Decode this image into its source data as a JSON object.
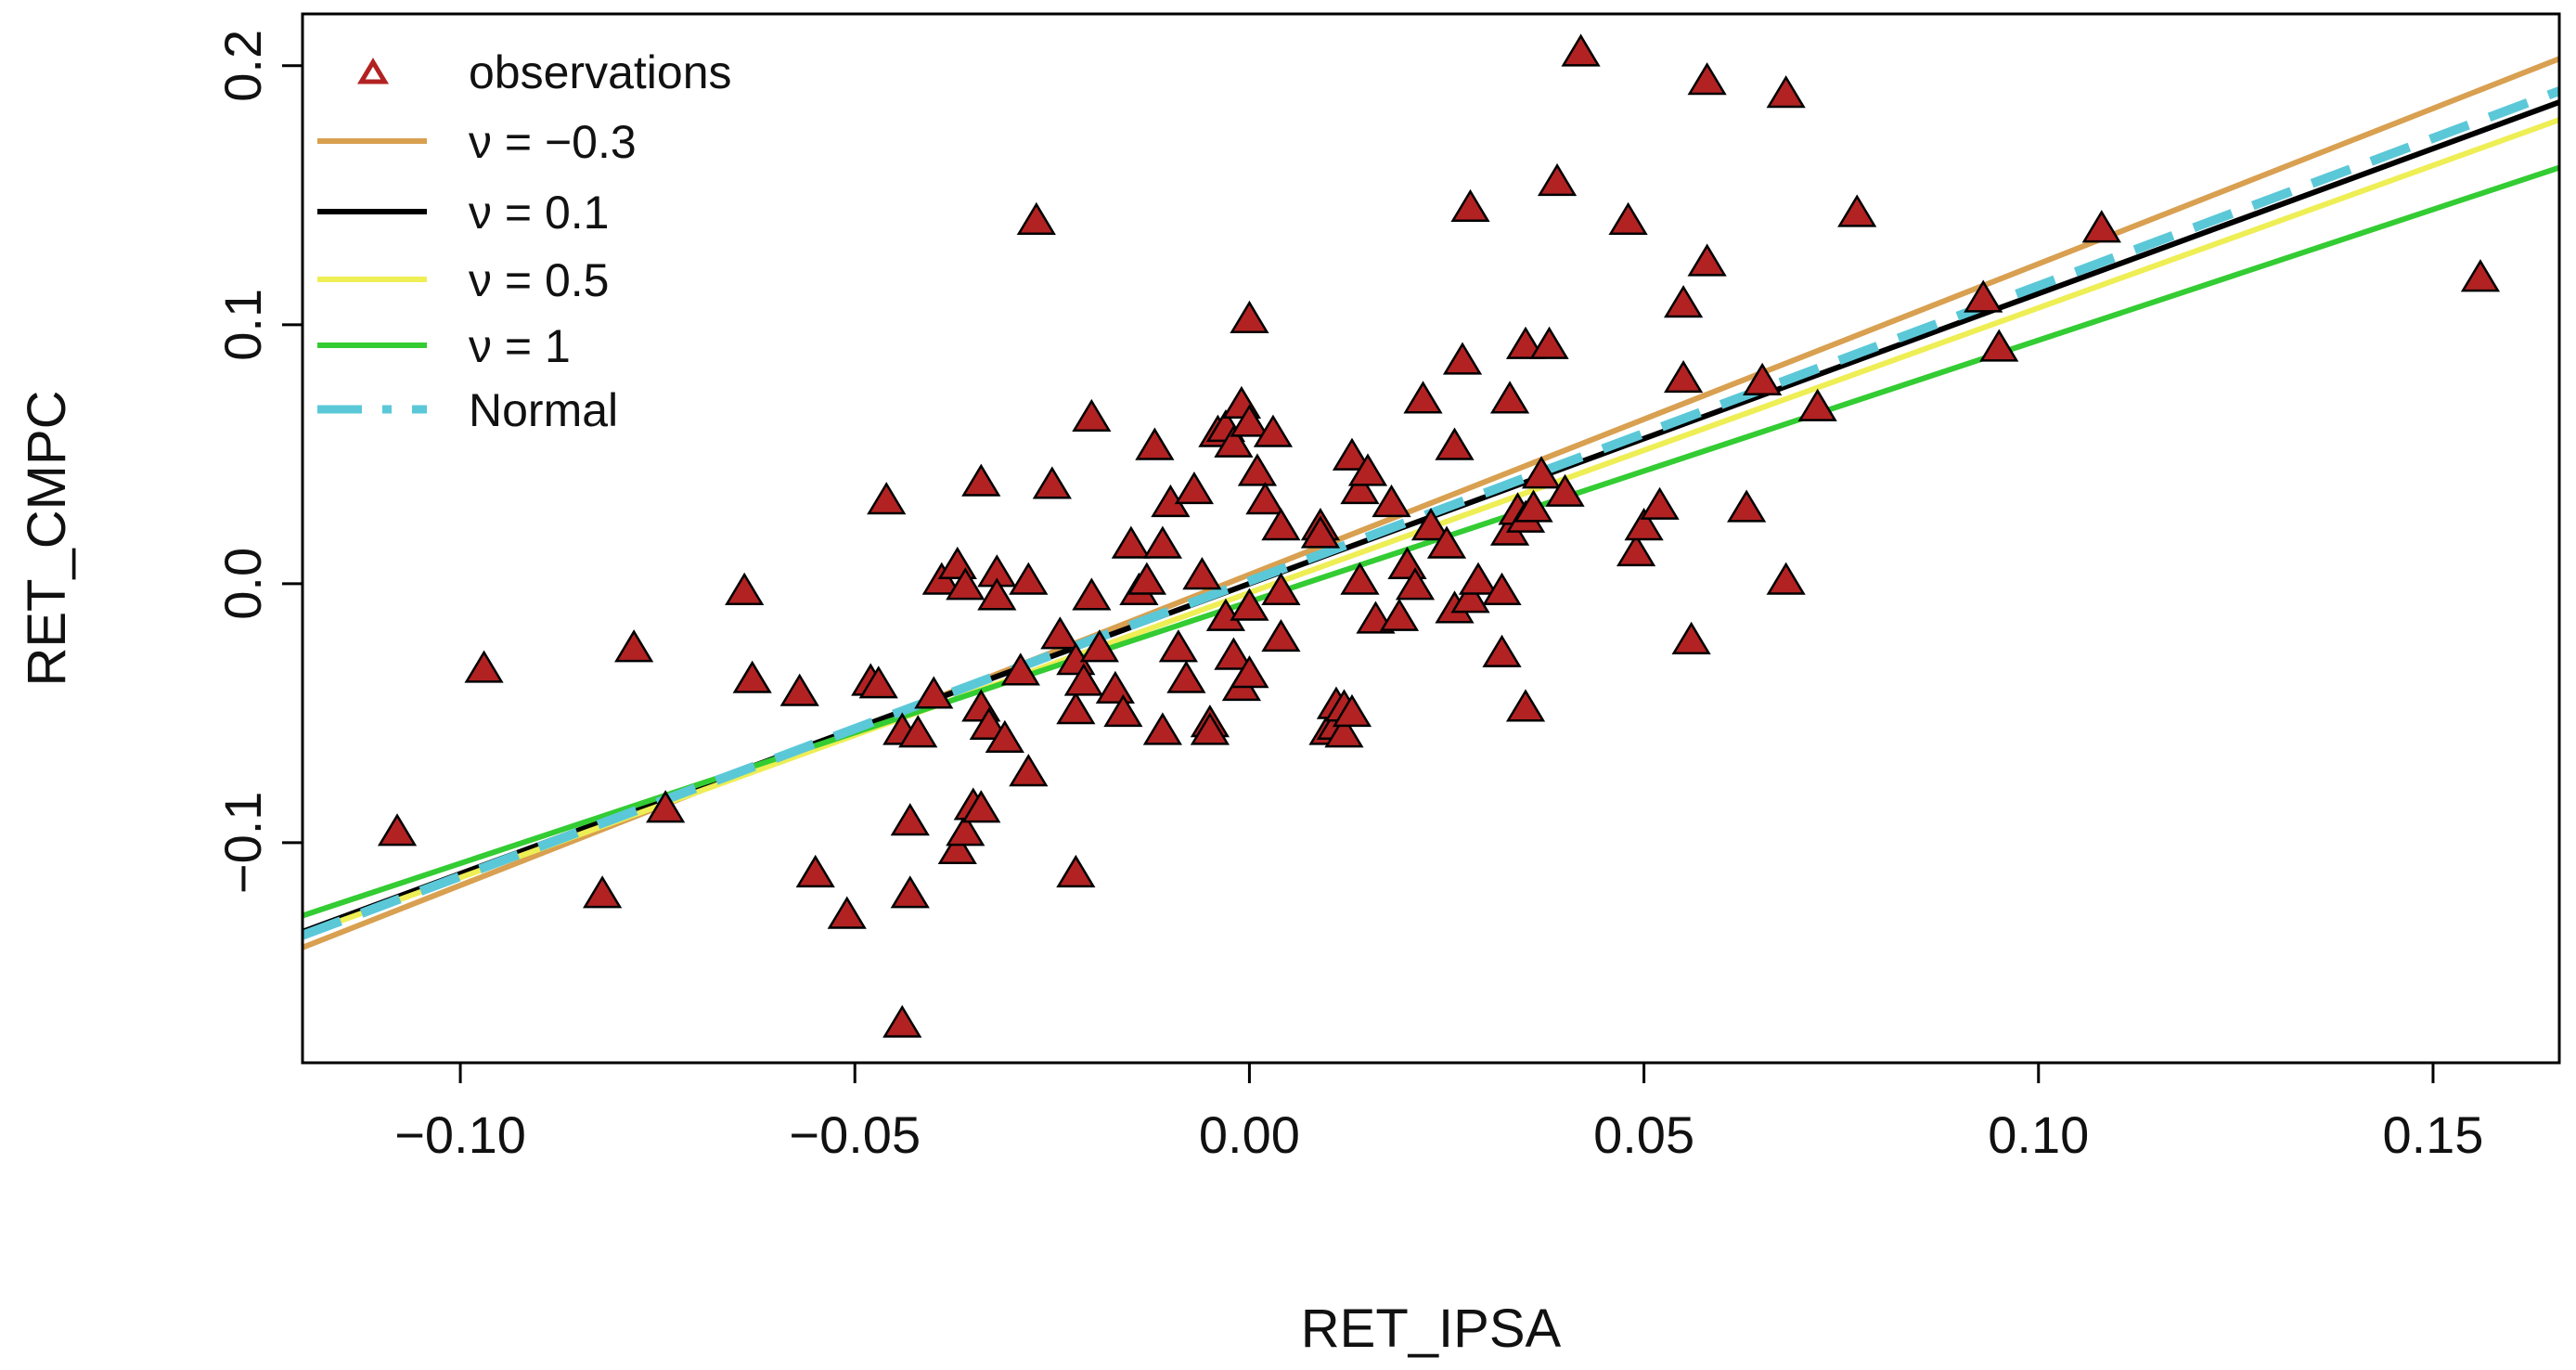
{
  "chart_data": {
    "type": "scatter",
    "title": "",
    "xlabel": "RET_IPSA",
    "ylabel": "RET_CMPC",
    "xlim": [
      -0.12,
      0.166
    ],
    "ylim": [
      -0.185,
      0.22
    ],
    "x_ticks": [
      -0.1,
      -0.05,
      0.0,
      0.05,
      0.1,
      0.15
    ],
    "x_tick_labels": [
      "−0.10",
      "−0.05",
      "0.00",
      "0.05",
      "0.10",
      "0.15"
    ],
    "y_ticks": [
      -0.1,
      0.0,
      0.1,
      0.2
    ],
    "y_tick_labels": [
      "−0.1",
      "0.0",
      "0.1",
      "0.2"
    ],
    "grid": false,
    "legend_position": "top-left",
    "observations": {
      "name": "observations",
      "color": "#b22222",
      "marker": "triangle",
      "points": [
        [
          -0.108,
          -0.096
        ],
        [
          -0.097,
          -0.033
        ],
        [
          -0.082,
          -0.12
        ],
        [
          -0.078,
          -0.025
        ],
        [
          -0.074,
          -0.087
        ],
        [
          -0.064,
          -0.003
        ],
        [
          -0.063,
          -0.037
        ],
        [
          -0.057,
          -0.042
        ],
        [
          -0.055,
          -0.112
        ],
        [
          -0.051,
          -0.128
        ],
        [
          -0.048,
          -0.038
        ],
        [
          -0.047,
          -0.039
        ],
        [
          -0.046,
          0.032
        ],
        [
          -0.044,
          -0.17
        ],
        [
          -0.044,
          -0.057
        ],
        [
          -0.043,
          -0.092
        ],
        [
          -0.043,
          -0.12
        ],
        [
          -0.042,
          -0.058
        ],
        [
          -0.04,
          -0.043
        ],
        [
          -0.039,
          0.001
        ],
        [
          -0.037,
          -0.103
        ],
        [
          -0.037,
          0.007
        ],
        [
          -0.036,
          -0.096
        ],
        [
          -0.036,
          -0.001
        ],
        [
          -0.035,
          -0.086
        ],
        [
          -0.034,
          -0.087
        ],
        [
          -0.034,
          -0.048
        ],
        [
          -0.034,
          0.039
        ],
        [
          -0.033,
          -0.055
        ],
        [
          -0.032,
          0.004
        ],
        [
          -0.032,
          -0.005
        ],
        [
          -0.031,
          -0.06
        ],
        [
          -0.029,
          -0.034
        ],
        [
          -0.028,
          -0.073
        ],
        [
          -0.028,
          0.001
        ],
        [
          -0.027,
          0.14
        ],
        [
          -0.025,
          0.038
        ],
        [
          -0.024,
          -0.02
        ],
        [
          -0.022,
          -0.03
        ],
        [
          -0.022,
          -0.049
        ],
        [
          -0.022,
          -0.112
        ],
        [
          -0.021,
          -0.038
        ],
        [
          -0.02,
          -0.005
        ],
        [
          -0.02,
          0.064
        ],
        [
          -0.019,
          -0.025
        ],
        [
          -0.017,
          -0.041
        ],
        [
          -0.016,
          -0.05
        ],
        [
          -0.015,
          0.015
        ],
        [
          -0.014,
          -0.003
        ],
        [
          -0.013,
          0.001
        ],
        [
          -0.012,
          0.053
        ],
        [
          -0.011,
          -0.057
        ],
        [
          -0.011,
          0.015
        ],
        [
          -0.01,
          0.031
        ],
        [
          -0.009,
          -0.025
        ],
        [
          -0.008,
          -0.037
        ],
        [
          -0.007,
          0.036
        ],
        [
          -0.006,
          0.003
        ],
        [
          -0.005,
          -0.054
        ],
        [
          -0.005,
          -0.057
        ],
        [
          -0.004,
          0.058
        ],
        [
          -0.003,
          0.06
        ],
        [
          -0.003,
          -0.013
        ],
        [
          -0.002,
          -0.028
        ],
        [
          -0.001,
          -0.04
        ],
        [
          0.0,
          -0.009
        ],
        [
          -0.002,
          0.054
        ],
        [
          -0.001,
          0.069
        ],
        [
          0.0,
          0.062
        ],
        [
          0.0,
          0.102
        ],
        [
          0.0,
          -0.035
        ],
        [
          0.001,
          0.043
        ],
        [
          0.002,
          0.032
        ],
        [
          0.003,
          0.058
        ],
        [
          0.004,
          0.022
        ],
        [
          0.004,
          -0.003
        ],
        [
          0.004,
          -0.021
        ],
        [
          0.009,
          0.022
        ],
        [
          0.009,
          0.019
        ],
        [
          0.01,
          -0.057
        ],
        [
          0.011,
          -0.047
        ],
        [
          0.011,
          -0.055
        ],
        [
          0.012,
          -0.048
        ],
        [
          0.012,
          -0.058
        ],
        [
          0.013,
          -0.05
        ],
        [
          0.013,
          0.049
        ],
        [
          0.014,
          0.036
        ],
        [
          0.014,
          0.001
        ],
        [
          0.015,
          0.043
        ],
        [
          0.016,
          -0.014
        ],
        [
          0.018,
          0.031
        ],
        [
          0.019,
          -0.013
        ],
        [
          0.02,
          0.007
        ],
        [
          0.021,
          -0.001
        ],
        [
          0.022,
          0.071
        ],
        [
          0.023,
          0.022
        ],
        [
          0.025,
          0.015
        ],
        [
          0.026,
          -0.01
        ],
        [
          0.026,
          0.053
        ],
        [
          0.027,
          0.086
        ],
        [
          0.028,
          -0.006
        ],
        [
          0.028,
          0.145
        ],
        [
          0.029,
          0.001
        ],
        [
          0.032,
          -0.027
        ],
        [
          0.032,
          -0.003
        ],
        [
          0.033,
          0.071
        ],
        [
          0.033,
          0.02
        ],
        [
          0.034,
          0.028
        ],
        [
          0.035,
          0.025
        ],
        [
          0.035,
          0.092
        ],
        [
          0.035,
          -0.048
        ],
        [
          0.036,
          0.029
        ],
        [
          0.037,
          0.042
        ],
        [
          0.038,
          0.092
        ],
        [
          0.039,
          0.155
        ],
        [
          0.04,
          0.035
        ],
        [
          0.042,
          0.205
        ],
        [
          0.048,
          0.14
        ],
        [
          0.049,
          0.012
        ],
        [
          0.05,
          0.022
        ],
        [
          0.052,
          0.03
        ],
        [
          0.055,
          0.108
        ],
        [
          0.055,
          0.079
        ],
        [
          0.056,
          -0.022
        ],
        [
          0.058,
          0.124
        ],
        [
          0.058,
          0.194
        ],
        [
          0.063,
          0.029
        ],
        [
          0.065,
          0.078
        ],
        [
          0.068,
          0.189
        ],
        [
          0.068,
          0.001
        ],
        [
          0.072,
          0.068
        ],
        [
          0.077,
          0.143
        ],
        [
          0.093,
          0.11
        ],
        [
          0.095,
          0.091
        ],
        [
          0.108,
          0.137
        ],
        [
          0.156,
          0.118
        ]
      ]
    },
    "series": [
      {
        "name": "ν = −0.3",
        "color": "#d8a050",
        "dash": "solid",
        "intercept": 0.0035,
        "slope": 1.2
      },
      {
        "name": "ν = 0.1",
        "color": "#000000",
        "dash": "solid",
        "intercept": 0.0,
        "slope": 1.12
      },
      {
        "name": "ν = 0.5",
        "color": "#eeee55",
        "dash": "solid",
        "intercept": -0.0035,
        "slope": 1.1
      },
      {
        "name": "ν = 1",
        "color": "#33cc33",
        "dash": "solid",
        "intercept": -0.007,
        "slope": 1.01
      },
      {
        "name": "Normal",
        "color": "#5bc8d8",
        "dash": "dashed",
        "intercept": 0.001,
        "slope": 1.14
      }
    ],
    "legend": [
      {
        "label": "observations",
        "kind": "marker",
        "color": "#b22222"
      },
      {
        "label": "ν = −0.3",
        "kind": "line",
        "color": "#d8a050",
        "dash": "solid"
      },
      {
        "label": "ν = 0.1",
        "kind": "line",
        "color": "#000000",
        "dash": "solid"
      },
      {
        "label": "ν = 0.5",
        "kind": "line",
        "color": "#eeee55",
        "dash": "solid"
      },
      {
        "label": "ν = 1",
        "kind": "line",
        "color": "#33cc33",
        "dash": "solid"
      },
      {
        "label": "Normal",
        "kind": "line",
        "color": "#5bc8d8",
        "dash": "dashed"
      }
    ]
  }
}
